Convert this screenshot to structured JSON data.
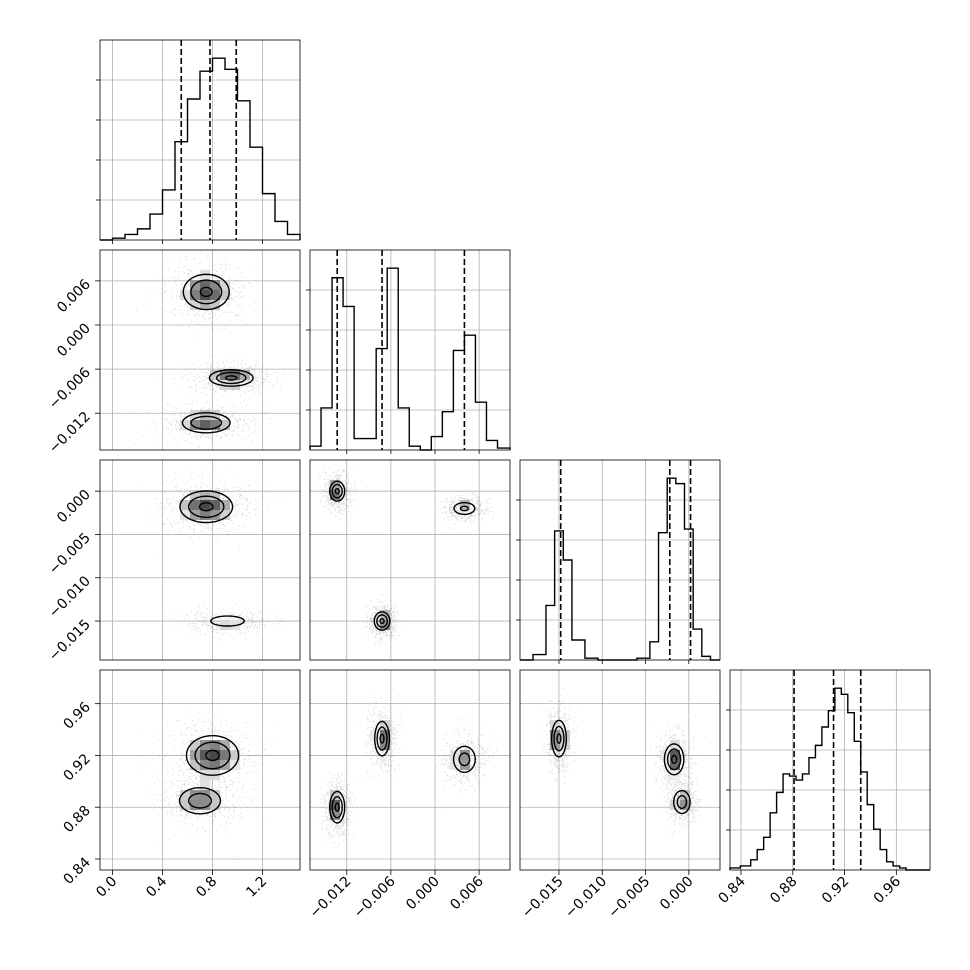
{
  "chart_data": {
    "type": "corner",
    "grid": true,
    "parameters": [
      {
        "range": [
          -0.1,
          1.5
        ],
        "ticks": [
          0.0,
          0.4,
          0.8,
          1.2
        ],
        "tick_labels": [
          "0.0",
          "0.4",
          "0.8",
          "1.2"
        ]
      },
      {
        "range": [
          -0.017,
          0.0102
        ],
        "ticks": [
          -0.012,
          -0.006,
          0.0,
          0.006
        ],
        "tick_labels": [
          "−0.012",
          "−0.006",
          "0.000",
          "0.006"
        ]
      },
      {
        "range": [
          -0.0195,
          0.0036
        ],
        "ticks": [
          -0.015,
          -0.01,
          -0.005,
          0.0
        ],
        "tick_labels": [
          "−0.015",
          "−0.010",
          "−0.005",
          "0.000"
        ]
      },
      {
        "range": [
          0.8315,
          0.986
        ],
        "ticks": [
          0.84,
          0.88,
          0.92,
          0.96
        ],
        "tick_labels": [
          "0.84",
          "0.88",
          "0.92",
          "0.96"
        ]
      }
    ],
    "marginals": [
      {
        "bins": [
          -0.1,
          0.0,
          0.1,
          0.2,
          0.3,
          0.4,
          0.5,
          0.6,
          0.7,
          0.8,
          0.9,
          1.0,
          1.1,
          1.2,
          1.3,
          1.4,
          1.5
        ],
        "counts": [
          0,
          1,
          3,
          6,
          14,
          27,
          53,
          76,
          91,
          98,
          92,
          75,
          50,
          25,
          10,
          3
        ],
        "quantiles": [
          0.55,
          0.78,
          0.99
        ]
      },
      {
        "bins": [
          -0.017,
          -0.0155,
          -0.014,
          -0.0125,
          -0.011,
          -0.0095,
          -0.008,
          -0.0065,
          -0.005,
          -0.0035,
          -0.002,
          -0.0005,
          0.001,
          0.0025,
          0.004,
          0.0055,
          0.007,
          0.0085,
          0.0102
        ],
        "counts": [
          2,
          22,
          90,
          75,
          6,
          6,
          53,
          95,
          22,
          2,
          0,
          7,
          20,
          52,
          60,
          25,
          5,
          1
        ],
        "quantiles": [
          -0.0133,
          -0.0072,
          0.004
        ]
      },
      {
        "bins": [
          -0.0195,
          -0.018,
          -0.0165,
          -0.0155,
          -0.0145,
          -0.0135,
          -0.012,
          -0.0105,
          -0.009,
          -0.0075,
          -0.006,
          -0.0045,
          -0.0035,
          -0.0025,
          -0.0015,
          -0.0005,
          0.0005,
          0.0015,
          0.0025,
          0.0036
        ],
        "counts": [
          0,
          3,
          30,
          71,
          55,
          11,
          1,
          0,
          0,
          0,
          1,
          10,
          70,
          100,
          97,
          72,
          17,
          2,
          0
        ],
        "quantiles": [
          -0.0148,
          -0.0022,
          0.0002
        ]
      },
      {
        "bins": [
          0.8315,
          0.8395,
          0.8475,
          0.8525,
          0.8575,
          0.8625,
          0.8675,
          0.8725,
          0.8775,
          0.8825,
          0.8875,
          0.8925,
          0.8975,
          0.9025,
          0.9075,
          0.9125,
          0.9175,
          0.9225,
          0.9275,
          0.9325,
          0.9375,
          0.9425,
          0.9475,
          0.9525,
          0.9575,
          0.9625,
          0.9675,
          0.9725,
          0.986
        ],
        "counts": [
          1,
          2,
          5,
          10,
          16,
          28,
          38,
          47,
          46,
          44,
          47,
          55,
          61,
          70,
          78,
          89,
          86,
          77,
          63,
          48,
          32,
          20,
          10,
          4,
          2,
          1,
          0,
          0
        ],
        "quantiles": [
          0.881,
          0.9115,
          0.9325
        ]
      }
    ],
    "pair_panels": [
      {
        "row": 1,
        "col": 0,
        "blobs": [
          {
            "center": [
              0.75,
              0.0045
            ],
            "size": [
              0.26,
              0.0034
            ],
            "weight": 1.0,
            "tilt": 0
          },
          {
            "center": [
              0.95,
              -0.0072
            ],
            "size": [
              0.25,
              0.0016
            ],
            "weight": 1.0,
            "tilt": -0.25
          },
          {
            "center": [
              0.75,
              -0.0133
            ],
            "size": [
              0.28,
              0.002
            ],
            "weight": 0.95,
            "tilt": 0.15
          }
        ]
      },
      {
        "row": 2,
        "col": 0,
        "blobs": [
          {
            "center": [
              0.75,
              -0.0018
            ],
            "size": [
              0.3,
              0.0026
            ],
            "weight": 1.0,
            "tilt": -0.2
          },
          {
            "center": [
              0.92,
              -0.015
            ],
            "size": [
              0.28,
              0.0012
            ],
            "weight": 0.65,
            "tilt": 0
          }
        ]
      },
      {
        "row": 2,
        "col": 1,
        "blobs": [
          {
            "center": [
              -0.0133,
              0.0
            ],
            "size": [
              0.0015,
              0.0017
            ],
            "weight": 1.0,
            "tilt": -0.5
          },
          {
            "center": [
              0.004,
              -0.002
            ],
            "size": [
              0.0025,
              0.0012
            ],
            "weight": 0.75,
            "tilt": 0
          },
          {
            "center": [
              -0.0072,
              -0.015
            ],
            "size": [
              0.0015,
              0.0015
            ],
            "weight": 1.0,
            "tilt": 0
          }
        ]
      },
      {
        "row": 3,
        "col": 0,
        "blobs": [
          {
            "center": [
              0.8,
              0.92
            ],
            "size": [
              0.3,
              0.022
            ],
            "weight": 1.0,
            "tilt": -0.3
          },
          {
            "center": [
              0.7,
              0.885
            ],
            "size": [
              0.26,
              0.016
            ],
            "weight": 0.85,
            "tilt": 0
          }
        ]
      },
      {
        "row": 3,
        "col": 1,
        "blobs": [
          {
            "center": [
              -0.0133,
              0.88
            ],
            "size": [
              0.0015,
              0.018
            ],
            "weight": 1.0,
            "tilt": 0.5
          },
          {
            "center": [
              -0.0072,
              0.933
            ],
            "size": [
              0.0015,
              0.02
            ],
            "weight": 1.0,
            "tilt": 0.6
          },
          {
            "center": [
              0.004,
              0.917
            ],
            "size": [
              0.0025,
              0.017
            ],
            "weight": 0.8,
            "tilt": 0.3
          }
        ]
      },
      {
        "row": 3,
        "col": 2,
        "blobs": [
          {
            "center": [
              -0.015,
              0.933
            ],
            "size": [
              0.0012,
              0.02
            ],
            "weight": 1.0,
            "tilt": 0
          },
          {
            "center": [
              -0.0017,
              0.917
            ],
            "size": [
              0.0016,
              0.017
            ],
            "weight": 1.0,
            "tilt": 0.2
          },
          {
            "center": [
              -0.0008,
              0.884
            ],
            "size": [
              0.0015,
              0.014
            ],
            "weight": 0.85,
            "tilt": 0
          }
        ]
      }
    ]
  }
}
